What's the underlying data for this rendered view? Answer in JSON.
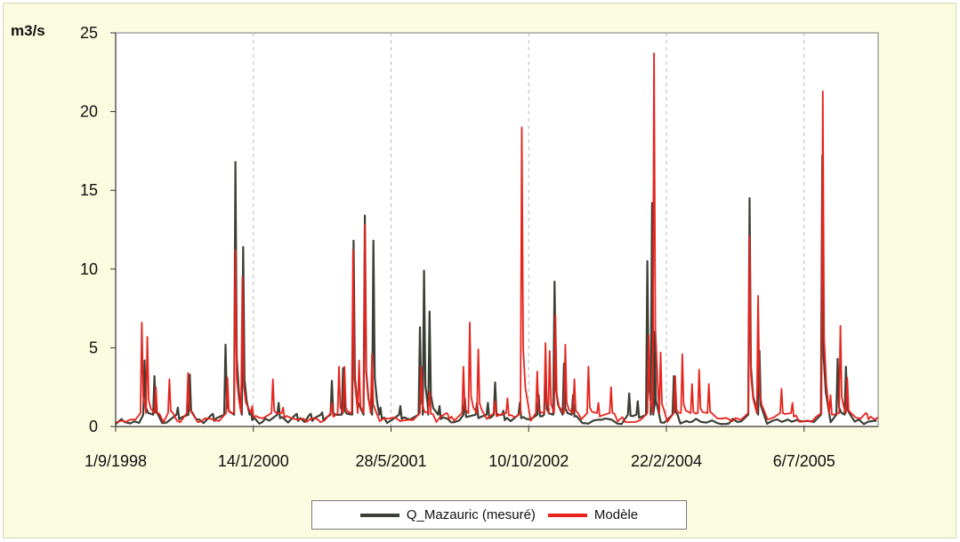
{
  "colors": {
    "background": "#fbfbe0",
    "measured": "#3b3f35",
    "model": "#e8231c",
    "axis": "#333333",
    "grid": "#b9b9b9"
  },
  "chart_data": {
    "type": "line",
    "ylabel": "m3/s",
    "xlabel": "",
    "ylim": [
      0,
      25
    ],
    "yticks": [
      0,
      5,
      10,
      15,
      20,
      25
    ],
    "xlim": [
      "1998-09-01",
      "2006-04-01"
    ],
    "xticks": [
      "1998-09-01",
      "2000-01-14",
      "2001-05-28",
      "2002-10-10",
      "2004-02-22",
      "2005-07-06"
    ],
    "xtick_labels": [
      "1/9/1998",
      "14/1/2000",
      "28/5/2001",
      "10/10/2002",
      "22/2/2004",
      "6/7/2005"
    ],
    "grid": "vertical dashed",
    "legend_position": "bottom",
    "series": [
      {
        "name": "Q_Mazauric (mesuré)",
        "peaks": [
          [
            "1998-12-15",
            4.2
          ],
          [
            "1999-01-20",
            3.2
          ],
          [
            "1999-04-15",
            1.2
          ],
          [
            "1999-05-28",
            3.3
          ],
          [
            "1999-08-20",
            0.8
          ],
          [
            "1999-10-05",
            5.2
          ],
          [
            "1999-11-10",
            16.8
          ],
          [
            "1999-12-08",
            11.4
          ],
          [
            "2000-01-05",
            1.0
          ],
          [
            "2000-04-15",
            1.5
          ],
          [
            "2000-06-20",
            0.8
          ],
          [
            "2000-08-10",
            0.8
          ],
          [
            "2000-09-20",
            0.9
          ],
          [
            "2000-10-25",
            2.9
          ],
          [
            "2000-12-05",
            3.7
          ],
          [
            "2001-01-12",
            11.8
          ],
          [
            "2001-02-22",
            13.4
          ],
          [
            "2001-03-25",
            11.8
          ],
          [
            "2001-04-20",
            1.2
          ],
          [
            "2001-07-01",
            1.3
          ],
          [
            "2001-09-10",
            6.3
          ],
          [
            "2001-09-25",
            9.9
          ],
          [
            "2001-10-15",
            7.3
          ],
          [
            "2001-11-20",
            1.3
          ],
          [
            "2002-02-20",
            1.8
          ],
          [
            "2002-04-05",
            1.5
          ],
          [
            "2002-05-15",
            1.5
          ],
          [
            "2002-06-10",
            2.8
          ],
          [
            "2002-07-10",
            1.0
          ],
          [
            "2002-09-08",
            1.5
          ],
          [
            "2002-11-15",
            2.0
          ],
          [
            "2002-12-10",
            3.8
          ],
          [
            "2003-01-12",
            9.2
          ],
          [
            "2003-02-15",
            4.0
          ],
          [
            "2003-03-20",
            2.0
          ],
          [
            "2003-10-10",
            2.1
          ],
          [
            "2003-11-10",
            1.6
          ],
          [
            "2003-12-15",
            10.5
          ],
          [
            "2004-01-01",
            14.2
          ],
          [
            "2004-01-10",
            6.0
          ],
          [
            "2004-03-20",
            3.2
          ],
          [
            "2004-12-20",
            14.5
          ],
          [
            "2005-01-25",
            4.8
          ],
          [
            "2005-09-10",
            17.2
          ],
          [
            "2005-11-05",
            4.3
          ],
          [
            "2005-12-05",
            3.8
          ]
        ]
      },
      {
        "name": "Modèle",
        "peaks": [
          [
            "1998-12-05",
            6.6
          ],
          [
            "1998-12-25",
            5.7
          ],
          [
            "1999-01-25",
            2.5
          ],
          [
            "1999-03-15",
            3.0
          ],
          [
            "1999-05-22",
            3.4
          ],
          [
            "1999-10-12",
            3.1
          ],
          [
            "1999-11-10",
            11.2
          ],
          [
            "1999-12-05",
            9.5
          ],
          [
            "2000-01-10",
            1.3
          ],
          [
            "2000-03-25",
            3.0
          ],
          [
            "2000-05-01",
            1.2
          ],
          [
            "2000-10-25",
            1.5
          ],
          [
            "2000-11-20",
            3.8
          ],
          [
            "2000-12-10",
            3.8
          ],
          [
            "2001-01-10",
            11.2
          ],
          [
            "2001-02-01",
            4.2
          ],
          [
            "2001-02-22",
            12.8
          ],
          [
            "2001-03-20",
            4.6
          ],
          [
            "2001-09-15",
            3.8
          ],
          [
            "2001-10-15",
            2.2
          ],
          [
            "2001-12-20",
            0.8
          ],
          [
            "2002-02-15",
            3.8
          ],
          [
            "2002-03-10",
            6.6
          ],
          [
            "2002-04-10",
            4.9
          ],
          [
            "2002-06-10",
            1.6
          ],
          [
            "2002-07-25",
            1.8
          ],
          [
            "2002-09-15",
            19.0
          ],
          [
            "2002-11-10",
            3.5
          ],
          [
            "2002-12-10",
            5.3
          ],
          [
            "2002-12-25",
            4.8
          ],
          [
            "2003-01-15",
            7.1
          ],
          [
            "2003-02-20",
            5.2
          ],
          [
            "2003-03-25",
            3.0
          ],
          [
            "2003-05-15",
            3.8
          ],
          [
            "2003-06-20",
            1.5
          ],
          [
            "2003-08-05",
            2.5
          ],
          [
            "2003-12-20",
            5.8
          ],
          [
            "2004-01-08",
            23.7
          ],
          [
            "2004-02-01",
            4.7
          ],
          [
            "2004-03-25",
            3.2
          ],
          [
            "2004-04-20",
            4.6
          ],
          [
            "2004-05-25",
            2.7
          ],
          [
            "2004-06-20",
            3.6
          ],
          [
            "2004-07-25",
            2.7
          ],
          [
            "2004-12-20",
            12.1
          ],
          [
            "2005-01-20",
            8.3
          ],
          [
            "2005-04-15",
            2.4
          ],
          [
            "2005-05-25",
            1.5
          ],
          [
            "2005-09-12",
            21.3
          ],
          [
            "2005-10-10",
            2.0
          ],
          [
            "2005-11-15",
            6.4
          ],
          [
            "2005-12-10",
            3.1
          ],
          [
            "2006-02-20",
            0.8
          ]
        ]
      }
    ]
  },
  "legend": [
    {
      "label": "Q_Mazauric (mesuré)",
      "color": "#3b3f35"
    },
    {
      "label": "Modèle",
      "color": "#e8231c"
    }
  ]
}
